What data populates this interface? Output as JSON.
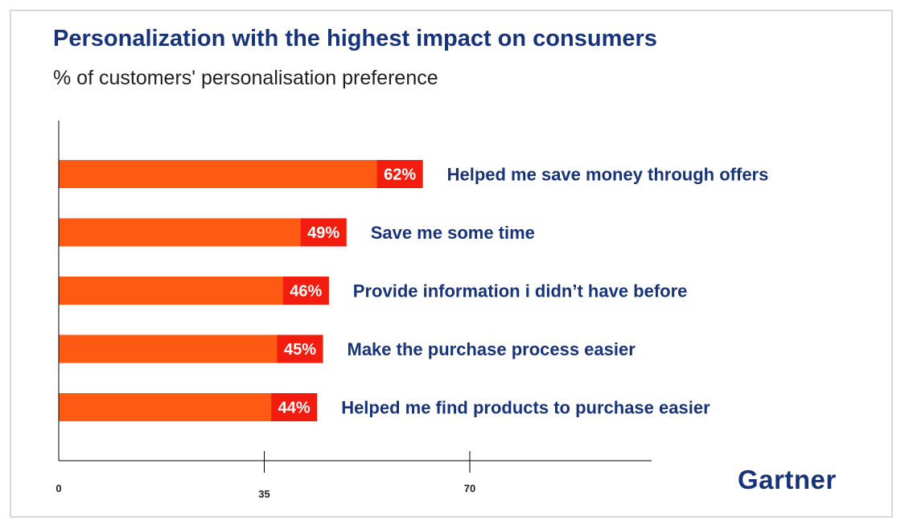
{
  "title": "Personalization with the highest impact on consumers",
  "subtitle": "% of customers' personalisation preference",
  "brand": "Gartner",
  "colors": {
    "bar": "#ff5a14",
    "value_box": "#f21d0f",
    "text": "#17337a"
  },
  "chart_data": {
    "type": "bar",
    "orientation": "horizontal",
    "title": "Personalization with the highest impact on consumers",
    "subtitle": "% of customers' personalisation preference",
    "categories": [
      "Helped me save money through offers",
      "Save me some time",
      "Provide information i didn’t have before",
      "Make the purchase process easier",
      "Helped me find products to purchase easier"
    ],
    "values": [
      62,
      49,
      46,
      45,
      44
    ],
    "value_labels": [
      "62%",
      "49%",
      "46%",
      "45%",
      "44%"
    ],
    "xticks": [
      {
        "value": 0,
        "label": "0"
      },
      {
        "value": 35,
        "label": "35"
      },
      {
        "value": 70,
        "label": "70"
      }
    ],
    "grid": false,
    "legend": "none"
  }
}
